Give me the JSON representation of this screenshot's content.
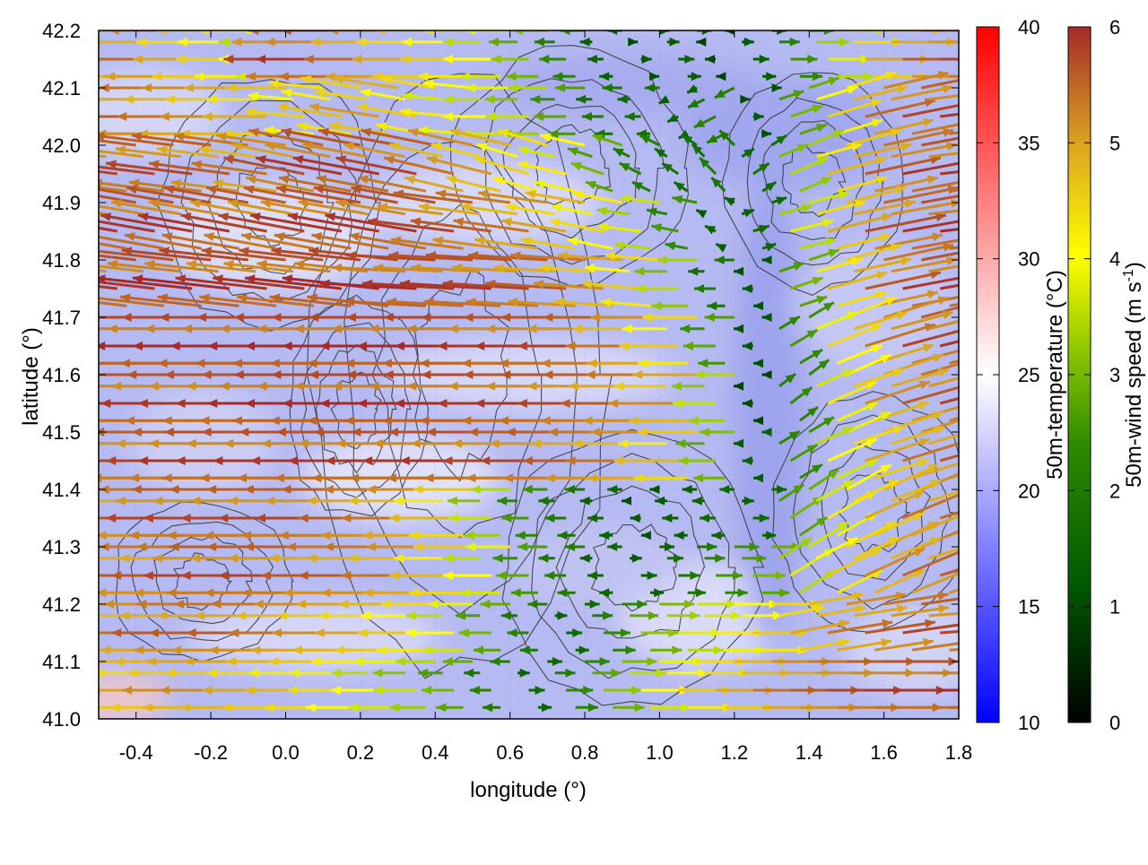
{
  "chart_data": {
    "type": "vector-field",
    "xlabel": "longitude (°)",
    "ylabel": "latitude (°)",
    "xlim": [
      -0.5,
      1.8
    ],
    "ylim": [
      41.0,
      42.2
    ],
    "x_ticks": [
      "-0.4",
      "-0.2",
      "0.0",
      "0.2",
      "0.4",
      "0.6",
      "0.8",
      "1.0",
      "1.2",
      "1.4",
      "1.6",
      "1.8"
    ],
    "x_tick_values": [
      -0.4,
      -0.2,
      0.0,
      0.2,
      0.4,
      0.6,
      0.8,
      1.0,
      1.2,
      1.4,
      1.6,
      1.8
    ],
    "y_ticks": [
      "41.0",
      "41.1",
      "41.2",
      "41.3",
      "41.4",
      "41.5",
      "41.6",
      "41.7",
      "41.8",
      "41.9",
      "42.0",
      "42.1",
      "42.2"
    ],
    "y_tick_values": [
      41.0,
      41.1,
      41.2,
      41.3,
      41.4,
      41.5,
      41.6,
      41.7,
      41.8,
      41.9,
      42.0,
      42.1,
      42.2
    ],
    "grid": true,
    "background": "heatmap",
    "contours": true,
    "colorbars": [
      {
        "label": "50m-temperature (°C)",
        "range": [
          10,
          40
        ],
        "ticks": [
          "10",
          "15",
          "20",
          "25",
          "30",
          "35",
          "40"
        ],
        "tick_values": [
          10,
          15,
          20,
          25,
          30,
          35,
          40
        ],
        "colors": [
          "#0000ff",
          "#ffffff",
          "#ff0000"
        ]
      },
      {
        "label_main": "50m-wind speed (m s",
        "label_sup": "-1",
        "label_end": ")",
        "range": [
          0,
          6
        ],
        "ticks": [
          "0",
          "1",
          "2",
          "3",
          "4",
          "5",
          "6"
        ],
        "tick_values": [
          0,
          1,
          2,
          3,
          4,
          5,
          6
        ],
        "colors": [
          "#000000",
          "#006400",
          "#2e8b00",
          "#8fbf00",
          "#ffff00",
          "#daa520",
          "#a52a2a"
        ]
      }
    ],
    "wind_vectors": {
      "columns": [
        -0.45,
        -0.35,
        -0.25,
        -0.15,
        -0.05,
        0.05,
        0.15,
        0.25,
        0.35,
        0.45,
        0.55,
        0.65,
        0.75,
        0.85,
        0.95,
        1.05,
        1.15,
        1.25,
        1.35,
        1.45,
        1.55,
        1.65,
        1.75
      ],
      "rows": [
        {
          "lat": 42.15,
          "u": [
            -1.2,
            -1.3,
            -1.1,
            -1.0,
            -0.9,
            -1.5,
            -1.6,
            -1.4,
            -1.2,
            -1.0,
            -0.9,
            -0.7,
            -0.5,
            -0.3,
            0.2,
            0.3,
            -0.2,
            0.3,
            0.5,
            0.8,
            1.2,
            1.6,
            2.0
          ],
          "v": [
            0,
            0,
            0,
            0,
            0,
            0,
            0,
            0,
            0,
            0,
            0,
            0,
            0,
            0,
            0,
            0,
            0,
            0,
            0,
            0,
            0,
            0,
            0
          ],
          "speed": [
            5.3,
            5.5,
            5.0,
            4.5,
            4.0,
            5.8,
            5.9,
            5.5,
            5.0,
            4.6,
            4.0,
            3.2,
            2.4,
            1.5,
            1.2,
            1.5,
            1.0,
            1.4,
            2.5,
            3.8,
            5.0,
            5.6,
            5.8
          ]
        },
        {
          "lat": 42.05,
          "u": [
            -1.5,
            -1.5,
            -1.4,
            -1.3,
            -1.2,
            -1.1,
            -1.2,
            -1.3,
            -1.1,
            -1.0,
            -0.9,
            -0.8,
            -0.6,
            -0.4,
            -0.3,
            -0.2,
            -0.4,
            0.2,
            0.6,
            1.0,
            1.3,
            1.5,
            1.6
          ],
          "v": [
            0,
            0,
            0,
            0,
            0,
            0.1,
            0.2,
            0.2,
            0.2,
            0.1,
            0,
            0,
            0,
            0,
            0,
            -0.1,
            -0.2,
            0,
            0.2,
            0.3,
            0.3,
            0.3,
            0.2
          ],
          "speed": [
            5.6,
            5.6,
            5.4,
            5.2,
            4.9,
            4.5,
            4.7,
            5.1,
            4.6,
            4.2,
            4.0,
            3.6,
            2.8,
            2.0,
            1.8,
            1.5,
            2.2,
            1.2,
            3.0,
            4.5,
            5.5,
            5.8,
            5.9
          ]
        },
        {
          "lat": 41.95,
          "u": [
            -1.6,
            -1.6,
            -1.6,
            -1.5,
            -1.4,
            -1.5,
            -1.6,
            -1.6,
            -1.5,
            -1.3,
            -1.2,
            -1.0,
            -0.9,
            -0.6,
            -0.4,
            -0.3,
            -0.3,
            0.3,
            0.7,
            1.1,
            1.4,
            1.6,
            1.7
          ],
          "v": [
            0.2,
            0.2,
            0.2,
            0.2,
            0.2,
            0.3,
            0.3,
            0.3,
            0.3,
            0.3,
            0.3,
            0.3,
            0.2,
            0.2,
            0.2,
            0.2,
            0.3,
            0.2,
            0.3,
            0.3,
            0.3,
            0.3,
            0.2
          ],
          "speed": [
            5.8,
            5.8,
            5.8,
            5.6,
            5.4,
            5.7,
            5.9,
            5.9,
            5.8,
            5.4,
            5.1,
            4.5,
            4.2,
            3.0,
            2.2,
            1.8,
            2.0,
            1.8,
            3.5,
            4.8,
            5.6,
            5.9,
            5.9
          ]
        },
        {
          "lat": 41.85,
          "u": [
            -1.7,
            -1.7,
            -1.7,
            -1.7,
            -1.6,
            -1.6,
            -1.7,
            -1.7,
            -1.7,
            -1.6,
            -1.5,
            -1.4,
            -1.2,
            -1.0,
            -0.8,
            -0.5,
            -0.2,
            0.3,
            0.8,
            1.2,
            1.5,
            1.7,
            1.8
          ],
          "v": [
            0.3,
            0.3,
            0.3,
            0.3,
            0.3,
            0.3,
            0.3,
            0.3,
            0.3,
            0.2,
            0.2,
            0.2,
            0.2,
            0.2,
            0.1,
            0.1,
            0.1,
            0.1,
            0.2,
            0.3,
            0.3,
            0.3,
            0.2
          ],
          "speed": [
            5.9,
            5.9,
            5.9,
            5.9,
            5.8,
            5.8,
            5.9,
            5.9,
            5.9,
            5.8,
            5.6,
            5.4,
            5.0,
            4.4,
            3.8,
            2.6,
            1.4,
            1.6,
            3.8,
            5.0,
            5.7,
            5.9,
            6.0
          ]
        },
        {
          "lat": 41.75,
          "u": [
            -1.7,
            -1.7,
            -1.8,
            -1.8,
            -1.7,
            -1.7,
            -1.8,
            -1.8,
            -1.8,
            -1.7,
            -1.7,
            -1.6,
            -1.5,
            -1.3,
            -1.1,
            -0.8,
            -0.4,
            -0.2,
            0.6,
            1.1,
            1.4,
            1.6,
            1.7
          ],
          "v": [
            0.2,
            0.2,
            0.2,
            0.2,
            0.2,
            0.2,
            0.2,
            0.2,
            0.1,
            0.1,
            0.1,
            0.1,
            0.1,
            0.1,
            0.1,
            0.0,
            0.0,
            0.0,
            0.2,
            0.3,
            0.3,
            0.3,
            0.3
          ],
          "speed": [
            5.9,
            5.9,
            6.0,
            6.0,
            5.9,
            5.9,
            6.0,
            6.0,
            6.0,
            5.9,
            5.9,
            5.8,
            5.6,
            5.2,
            4.6,
            3.5,
            2.0,
            1.2,
            3.0,
            4.8,
            5.6,
            5.9,
            5.9
          ]
        },
        {
          "lat": 41.65,
          "u": [
            -1.8,
            -1.8,
            -1.8,
            -1.8,
            -1.8,
            -1.8,
            -1.8,
            -1.8,
            -1.8,
            -1.8,
            -1.8,
            -1.7,
            -1.7,
            -1.6,
            -1.4,
            -1.1,
            -0.6,
            -0.2,
            0.5,
            1.0,
            1.3,
            1.5,
            1.6
          ],
          "v": [
            0.0,
            0.0,
            0.0,
            0.0,
            0.0,
            0.0,
            0.0,
            0.0,
            0.0,
            0.0,
            0.0,
            0.0,
            0.0,
            0.0,
            0.0,
            0.0,
            0.0,
            0.0,
            0.3,
            0.4,
            0.4,
            0.4,
            0.4
          ],
          "speed": [
            6.0,
            6.0,
            6.0,
            6.0,
            6.0,
            6.0,
            6.0,
            6.0,
            6.0,
            6.0,
            6.0,
            5.9,
            5.9,
            5.8,
            5.4,
            4.6,
            2.8,
            1.2,
            2.6,
            4.4,
            5.4,
            5.8,
            5.9
          ]
        },
        {
          "lat": 41.55,
          "u": [
            -1.7,
            -1.7,
            -1.7,
            -1.7,
            -1.7,
            -1.8,
            -1.8,
            -1.8,
            -1.8,
            -1.8,
            -1.8,
            -1.7,
            -1.7,
            -1.6,
            -1.5,
            -1.3,
            -0.8,
            -0.2,
            0.4,
            0.9,
            1.2,
            1.4,
            1.5
          ],
          "v": [
            0.0,
            0.0,
            0.0,
            0.0,
            0.0,
            0.0,
            0.0,
            0.0,
            0.0,
            0.0,
            0.0,
            0.0,
            0.0,
            0.0,
            0.0,
            0.0,
            0.0,
            0.0,
            0.3,
            0.4,
            0.4,
            0.4,
            0.4
          ],
          "speed": [
            5.9,
            5.9,
            5.9,
            5.9,
            5.9,
            6.0,
            6.0,
            6.0,
            6.0,
            6.0,
            6.0,
            5.9,
            5.9,
            5.8,
            5.6,
            5.2,
            3.6,
            1.0,
            2.4,
            4.2,
            5.2,
            5.6,
            5.8
          ]
        },
        {
          "lat": 41.45,
          "u": [
            -1.6,
            -1.6,
            -1.6,
            -1.7,
            -1.7,
            -1.7,
            -1.7,
            -1.7,
            -1.7,
            -1.7,
            -1.7,
            -1.6,
            -1.6,
            -1.5,
            -1.4,
            -1.2,
            -0.7,
            -0.2,
            0.5,
            0.9,
            1.2,
            1.3,
            1.4
          ],
          "v": [
            0.0,
            0.0,
            0.0,
            0.0,
            0.0,
            0.0,
            0.0,
            0.0,
            0.0,
            0.0,
            0.0,
            0.0,
            0.0,
            0.0,
            0.0,
            0.0,
            0.0,
            0.0,
            0.3,
            0.4,
            0.4,
            0.4,
            0.4
          ],
          "speed": [
            5.8,
            5.8,
            5.8,
            5.9,
            5.9,
            5.9,
            5.9,
            5.9,
            5.9,
            5.9,
            5.9,
            5.8,
            5.8,
            5.6,
            5.4,
            4.8,
            3.2,
            1.4,
            2.6,
            4.0,
            5.0,
            5.4,
            5.6
          ]
        },
        {
          "lat": 41.35,
          "u": [
            -1.5,
            -1.5,
            -1.6,
            -1.6,
            -1.6,
            -1.6,
            -1.6,
            -1.5,
            -1.4,
            -1.2,
            -0.8,
            -0.5,
            -0.4,
            -0.3,
            -0.2,
            -0.3,
            -0.3,
            0.3,
            0.6,
            0.9,
            1.1,
            1.2,
            1.3
          ],
          "v": [
            0.0,
            0.0,
            0.0,
            0.0,
            0.0,
            0.0,
            0.0,
            0.0,
            0.0,
            0.0,
            0.0,
            0.0,
            0.0,
            0.0,
            0.0,
            0.0,
            0.0,
            0.0,
            0.4,
            0.5,
            0.5,
            0.5,
            0.4
          ],
          "speed": [
            5.6,
            5.6,
            5.8,
            5.8,
            5.8,
            5.8,
            5.8,
            5.6,
            5.4,
            4.8,
            3.6,
            2.6,
            2.0,
            1.6,
            1.2,
            1.4,
            1.6,
            1.6,
            3.0,
            4.2,
            5.0,
            5.4,
            5.5
          ]
        },
        {
          "lat": 41.25,
          "u": [
            -1.4,
            -1.5,
            -1.5,
            -1.6,
            -1.6,
            -1.6,
            -1.5,
            -1.5,
            -1.4,
            -1.2,
            -0.9,
            -0.6,
            -0.4,
            -0.3,
            0.3,
            0.4,
            0.5,
            0.6,
            0.8,
            1.0,
            1.1,
            1.2,
            1.3
          ],
          "v": [
            0.0,
            0.0,
            0.0,
            0.0,
            0.0,
            0.0,
            0.0,
            0.0,
            0.0,
            0.0,
            0.0,
            0.0,
            0.0,
            0.0,
            0.0,
            0.0,
            0.0,
            0.0,
            0.5,
            0.5,
            0.5,
            0.5,
            0.4
          ],
          "speed": [
            5.4,
            5.6,
            5.6,
            5.8,
            5.8,
            5.8,
            5.6,
            5.6,
            5.4,
            4.8,
            4.0,
            2.8,
            2.2,
            1.6,
            1.5,
            2.0,
            2.6,
            3.0,
            3.8,
            4.6,
            5.2,
            5.5,
            5.6
          ]
        },
        {
          "lat": 41.15,
          "u": [
            -1.3,
            -1.4,
            -1.5,
            -1.5,
            -1.5,
            -1.4,
            -1.3,
            -1.2,
            -1.1,
            -0.9,
            -0.6,
            -0.4,
            0.3,
            0.5,
            0.7,
            0.8,
            0.9,
            1.0,
            1.1,
            1.2,
            1.3,
            1.4,
            1.4
          ],
          "v": [
            0.0,
            0.0,
            0.0,
            0.0,
            0.0,
            0.0,
            0.0,
            0.0,
            0.0,
            0.0,
            0.0,
            0.0,
            0.0,
            0.0,
            0.0,
            0.0,
            0.0,
            0.0,
            0.2,
            0.2,
            0.2,
            0.2,
            0.1
          ],
          "speed": [
            5.2,
            5.4,
            5.6,
            5.6,
            5.6,
            5.4,
            5.2,
            5.0,
            4.6,
            4.0,
            3.0,
            2.2,
            1.6,
            2.4,
            3.2,
            3.8,
            4.2,
            4.6,
            5.0,
            5.4,
            5.6,
            5.8,
            5.8
          ]
        },
        {
          "lat": 41.05,
          "u": [
            -1.2,
            -1.2,
            -1.3,
            -1.3,
            -1.2,
            -1.1,
            -1.0,
            -0.9,
            -0.8,
            -0.6,
            -0.4,
            0.3,
            0.5,
            0.7,
            0.9,
            1.0,
            1.1,
            1.2,
            1.3,
            1.4,
            1.5,
            1.5,
            1.6
          ],
          "v": [
            0.0,
            0.0,
            0.0,
            0.0,
            0.0,
            0.0,
            0.0,
            0.0,
            0.0,
            0.0,
            0.0,
            0.0,
            0.0,
            0.0,
            0.0,
            0.0,
            0.0,
            0.0,
            0.0,
            0.0,
            0.0,
            0.0,
            0.0
          ],
          "speed": [
            5.0,
            5.0,
            5.2,
            5.2,
            5.0,
            4.8,
            4.4,
            4.0,
            3.6,
            3.0,
            2.2,
            1.6,
            2.4,
            3.2,
            4.0,
            4.6,
            5.0,
            5.4,
            5.6,
            5.8,
            5.9,
            5.9,
            6.0
          ]
        }
      ]
    }
  }
}
